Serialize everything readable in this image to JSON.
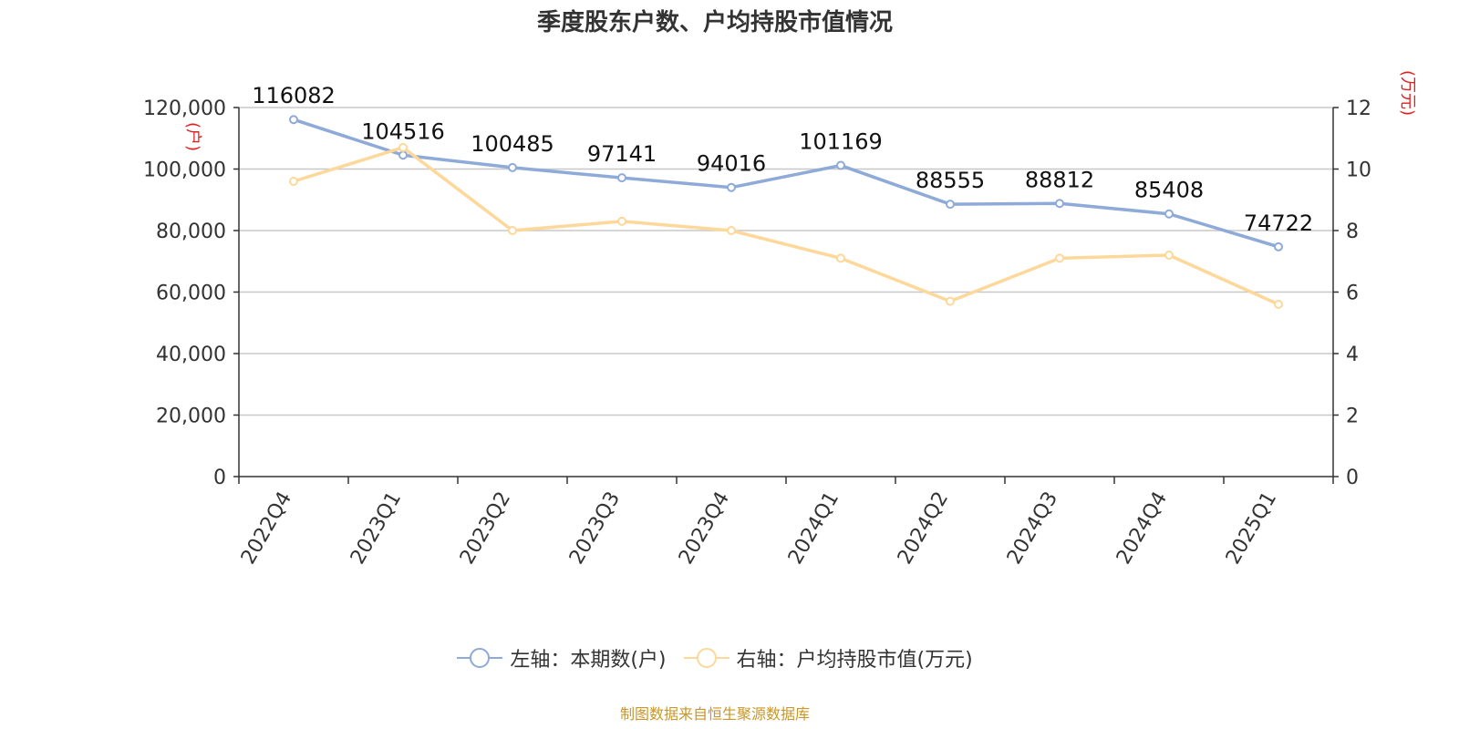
{
  "chart_data": {
    "type": "line",
    "title": "季度股东户数、户均持股市值情况",
    "categories": [
      "2022Q4",
      "2023Q1",
      "2023Q2",
      "2023Q3",
      "2023Q4",
      "2024Q1",
      "2024Q2",
      "2024Q3",
      "2024Q4",
      "2025Q1"
    ],
    "series": [
      {
        "name": "左轴：本期数(户)",
        "axis": "left",
        "color": "#8eaad8",
        "values": [
          116082,
          104516,
          100485,
          97141,
          94016,
          101169,
          88555,
          88812,
          85408,
          74722
        ],
        "labels": [
          "116082",
          "104516",
          "100485",
          "97141",
          "94016",
          "101169",
          "88555",
          "88812",
          "85408",
          "74722"
        ]
      },
      {
        "name": "右轴：户均持股市值(万元)",
        "axis": "right",
        "color": "#fdd89a",
        "values": [
          9.6,
          10.7,
          8.0,
          8.3,
          8.0,
          7.1,
          5.7,
          7.1,
          7.2,
          5.6
        ]
      }
    ],
    "yaxis_left": {
      "label": "(户)",
      "ylim": [
        0,
        120000
      ],
      "ticks": [
        "0",
        "20,000",
        "40,000",
        "60,000",
        "80,000",
        "100,000",
        "120,000"
      ]
    },
    "yaxis_right": {
      "label": "(万元)",
      "ylim": [
        0,
        12
      ],
      "ticks": [
        "0",
        "2",
        "4",
        "6",
        "8",
        "10",
        "12"
      ]
    },
    "grid": true,
    "legend_position": "bottom",
    "source": "制图数据来自恒生聚源数据库"
  }
}
